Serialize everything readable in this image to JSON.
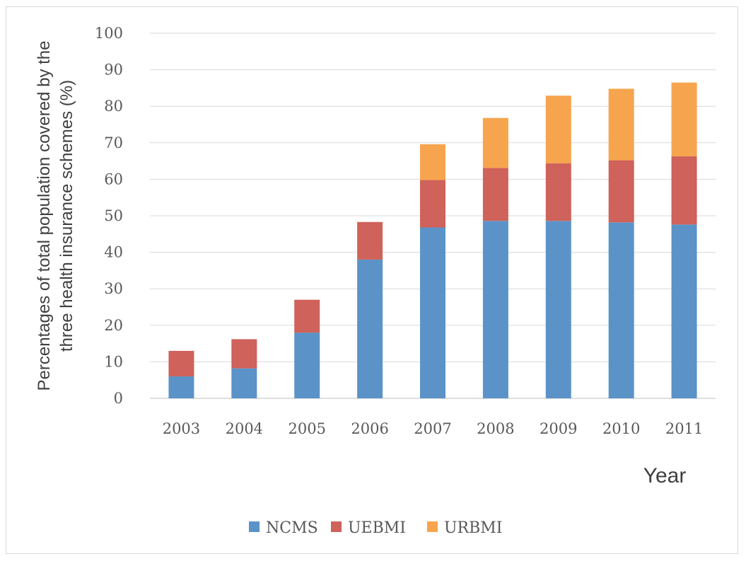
{
  "chart_data": {
    "type": "bar",
    "stacked": true,
    "categories": [
      "2003",
      "2004",
      "2005",
      "2006",
      "2007",
      "2008",
      "2009",
      "2010",
      "2011"
    ],
    "series": [
      {
        "name": "NCMS",
        "color": "#5b93c8",
        "values": [
          6,
          8.2,
          18,
          38,
          46.8,
          48.6,
          48.6,
          48.2,
          47.6
        ]
      },
      {
        "name": "UEBMI",
        "color": "#cf625a",
        "values": [
          7,
          8,
          9,
          10.3,
          13,
          14.5,
          15.8,
          17,
          18.7
        ]
      },
      {
        "name": "URBMI",
        "color": "#f6a54e",
        "values": [
          0,
          0,
          0,
          0,
          9.8,
          13.7,
          18.5,
          19.6,
          20.2
        ]
      }
    ],
    "ylim": [
      0,
      100
    ],
    "yticks": [
      0,
      10,
      20,
      30,
      40,
      50,
      60,
      70,
      80,
      90,
      100
    ],
    "ylabel_line1": "Percentages of total population covered by the",
    "ylabel_line2": "three health insurance schemes (%)",
    "xlabel": "Year",
    "grid": true,
    "legend_position": "bottom"
  }
}
